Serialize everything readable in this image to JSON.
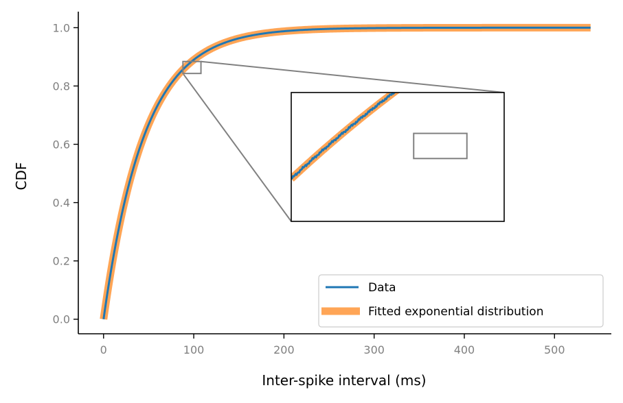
{
  "chart_data": {
    "type": "line",
    "title": "",
    "xlabel": "Inter-spike interval (ms)",
    "ylabel": "CDF",
    "xlim": [
      -28,
      563
    ],
    "ylim": [
      -0.05,
      1.055
    ],
    "xticks": [
      0,
      100,
      200,
      300,
      400,
      500
    ],
    "xtick_labels": [
      "0",
      "100",
      "200",
      "300",
      "400",
      "500"
    ],
    "yticks": [
      0.0,
      0.2,
      0.4,
      0.6,
      0.8,
      1.0
    ],
    "ytick_labels": [
      "0.0",
      "0.2",
      "0.4",
      "0.6",
      "0.8",
      "1.0"
    ],
    "grid": false,
    "legend_position": "lower-right",
    "series": [
      {
        "name": "Data",
        "color": "#1f77b4",
        "x": [
          0,
          10,
          20,
          30,
          40,
          50,
          60,
          70,
          80,
          90,
          100,
          120,
          140,
          160,
          180,
          200,
          250,
          300,
          350,
          400,
          450,
          500,
          540
        ],
        "values": [
          0.0,
          0.198,
          0.357,
          0.485,
          0.587,
          0.669,
          0.735,
          0.787,
          0.829,
          0.863,
          0.89,
          0.929,
          0.954,
          0.971,
          0.981,
          0.988,
          0.996,
          0.998,
          0.999,
          1.0,
          1.0,
          1.0,
          1.0
        ]
      },
      {
        "name": "Fitted exponential distribution",
        "color": "#ffa556",
        "x": [
          0,
          10,
          20,
          30,
          40,
          50,
          60,
          70,
          80,
          90,
          100,
          120,
          140,
          160,
          180,
          200,
          250,
          300,
          350,
          400,
          450,
          500,
          540
        ],
        "values": [
          0.0,
          0.198,
          0.357,
          0.485,
          0.587,
          0.669,
          0.735,
          0.787,
          0.829,
          0.863,
          0.89,
          0.929,
          0.954,
          0.971,
          0.981,
          0.988,
          0.996,
          0.998,
          0.999,
          1.0,
          1.0,
          1.0,
          1.0
        ]
      }
    ],
    "inset": {
      "xlim": [
        88,
        108
      ],
      "ylim": [
        0.843,
        0.884
      ],
      "zoom_box": {
        "x": [
          99.5,
          104.5
        ],
        "y": [
          0.863,
          0.871
        ]
      }
    }
  }
}
